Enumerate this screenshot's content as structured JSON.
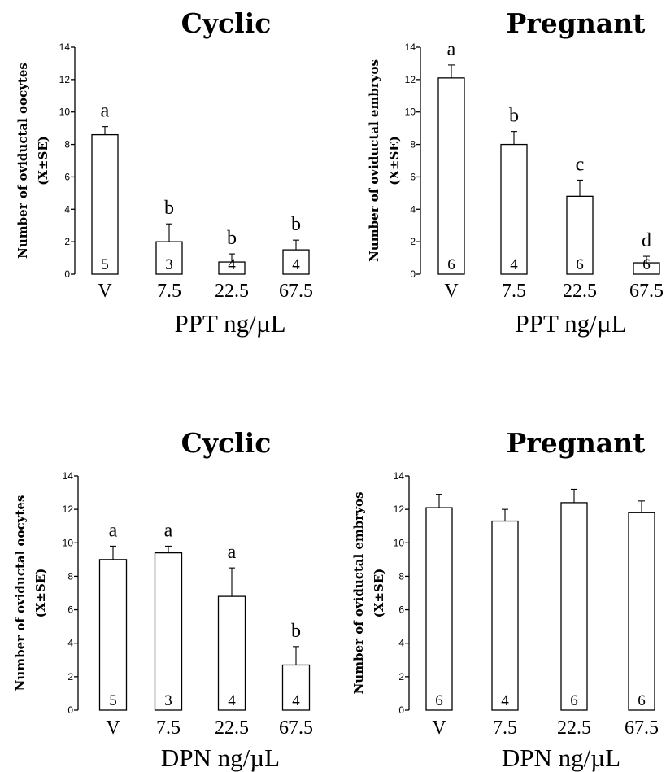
{
  "chart_data": [
    {
      "type": "bar",
      "title": "Cyclic",
      "ylabel": [
        "Number of oviductal oocytes",
        "(X±SE)"
      ],
      "xlabel": "PPT ng/µL",
      "categories": [
        "V",
        "7.5",
        "22.5",
        "67.5"
      ],
      "values": [
        8.6,
        2.0,
        0.75,
        1.5
      ],
      "errors": [
        0.5,
        1.1,
        0.5,
        0.6
      ],
      "letters": [
        "a",
        "b",
        "b",
        "b"
      ],
      "n": [
        "5",
        "3",
        "4",
        "4"
      ],
      "ylim": [
        0,
        14
      ],
      "yticks": [
        "0",
        "2",
        "4",
        "6",
        "8",
        "10",
        "12",
        "14"
      ]
    },
    {
      "type": "bar",
      "title": "Pregnant",
      "ylabel": [
        "Number of oviductal embryos",
        "(X±SE)"
      ],
      "xlabel": "PPT ng/µL",
      "categories": [
        "V",
        "7.5",
        "22.5",
        "67.5"
      ],
      "values": [
        12.1,
        8.0,
        4.8,
        0.7
      ],
      "errors": [
        0.8,
        0.8,
        1.0,
        0.4
      ],
      "letters": [
        "a",
        "b",
        "c",
        "d"
      ],
      "n": [
        "6",
        "4",
        "6",
        "6"
      ],
      "ylim": [
        0,
        14
      ],
      "yticks": [
        "0",
        "2",
        "4",
        "6",
        "8",
        "10",
        "12",
        "14"
      ]
    },
    {
      "type": "bar",
      "title": "Cyclic",
      "ylabel": [
        "Number of oviductal oocytes",
        "(X±SE)"
      ],
      "xlabel": "DPN ng/µL",
      "categories": [
        "V",
        "7.5",
        "22.5",
        "67.5"
      ],
      "values": [
        9.0,
        9.4,
        6.8,
        2.7
      ],
      "errors": [
        0.8,
        0.4,
        1.7,
        1.1
      ],
      "letters": [
        "a",
        "a",
        "a",
        "b"
      ],
      "n": [
        "5",
        "3",
        "4",
        "4"
      ],
      "ylim": [
        0,
        14
      ],
      "yticks": [
        "0",
        "2",
        "4",
        "6",
        "8",
        "10",
        "12",
        "14"
      ]
    },
    {
      "type": "bar",
      "title": "Pregnant",
      "ylabel": [
        "Number of oviductal embryos",
        "(X±SE)"
      ],
      "xlabel": "DPN ng/µL",
      "categories": [
        "V",
        "7.5",
        "22.5",
        "67.5"
      ],
      "values": [
        12.1,
        11.3,
        12.4,
        11.8
      ],
      "errors": [
        0.8,
        0.7,
        0.8,
        0.7
      ],
      "letters": [
        "",
        "",
        "",
        ""
      ],
      "n": [
        "6",
        "4",
        "6",
        "6"
      ],
      "ylim": [
        0,
        14
      ],
      "yticks": [
        "0",
        "2",
        "4",
        "6",
        "8",
        "10",
        "12",
        "14"
      ]
    }
  ]
}
